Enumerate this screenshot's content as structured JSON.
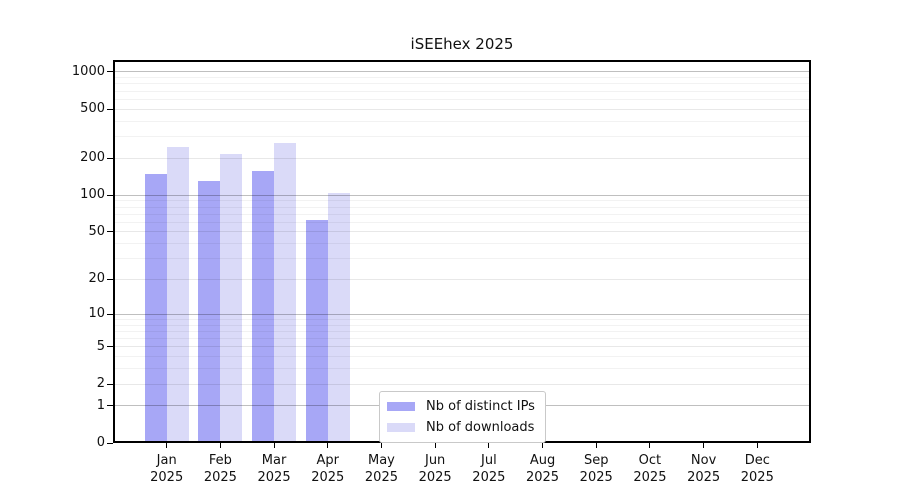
{
  "chart_data": {
    "type": "bar",
    "title": "iSEEhex 2025",
    "categories": [
      "Jan",
      "Feb",
      "Mar",
      "Apr",
      "May",
      "Jun",
      "Jul",
      "Aug",
      "Sep",
      "Oct",
      "Nov",
      "Dec"
    ],
    "year_label": "2025",
    "series": [
      {
        "name": "Nb of distinct IPs",
        "color": "#a7a7f6",
        "values": [
          150,
          131,
          158,
          62,
          0,
          0,
          0,
          0,
          0,
          0,
          0,
          0
        ]
      },
      {
        "name": "Nb of downloads",
        "color": "#dadaf8",
        "values": [
          248,
          217,
          268,
          104,
          0,
          0,
          0,
          0,
          0,
          0,
          0,
          0
        ]
      }
    ],
    "yscale": "log10(1+x)",
    "yticks": [
      0,
      1,
      2,
      5,
      10,
      20,
      50,
      100,
      200,
      500,
      1000
    ],
    "minor_yticks": [
      3,
      4,
      6,
      7,
      8,
      9,
      30,
      40,
      60,
      70,
      80,
      90,
      300,
      400,
      600,
      700,
      800,
      900
    ],
    "ylim": [
      0,
      1250
    ],
    "grid": true,
    "legend_position": "lower center-left",
    "colors": {
      "grid_major": "rgba(0,0,0,0.25)",
      "grid_mid": "rgba(0,0,0,0.09)",
      "grid_minor": "rgba(0,0,0,0.05)",
      "frame": "#000000",
      "background": "#ffffff"
    }
  }
}
